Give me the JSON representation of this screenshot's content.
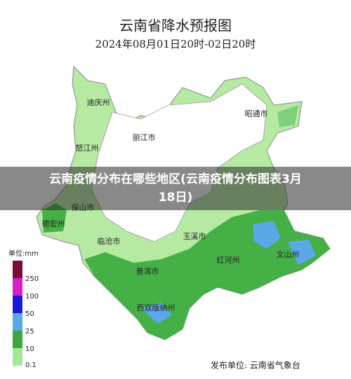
{
  "header": {
    "title": "云南省降水预报图",
    "subtitle": "2024年08月01日20时-02日20时"
  },
  "overlay": {
    "caption": "云南疫情分布在哪些地区(云南疫情分布图表3月18日)"
  },
  "places": [
    {
      "label": "迪庆州"
    },
    {
      "label": "昭通市"
    },
    {
      "label": "丽江市"
    },
    {
      "label": "怒江州"
    },
    {
      "label": "保山市"
    },
    {
      "label": "德宏州"
    },
    {
      "label": "临沧市"
    },
    {
      "label": "玉溪市"
    },
    {
      "label": "红河州"
    },
    {
      "label": "文山州"
    },
    {
      "label": "普洱市"
    },
    {
      "label": "西双版纳州"
    }
  ],
  "legend": {
    "unit": "单位:mm",
    "levels": [
      250,
      100,
      50,
      25,
      10,
      0.1
    ]
  },
  "footer": {
    "publisher": "发布单位: 云南省气象台"
  }
}
